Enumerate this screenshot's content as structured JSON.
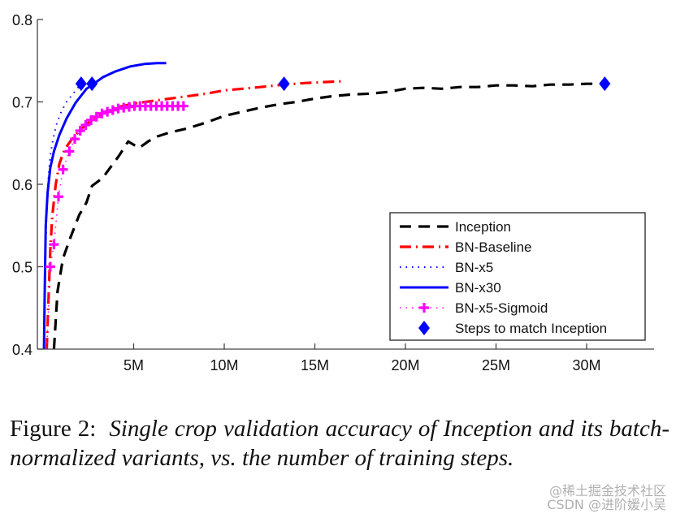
{
  "chart_data": {
    "type": "line",
    "title": "",
    "xlabel": "",
    "ylabel": "",
    "xlim": [
      0,
      32.5
    ],
    "ylim": [
      0.4,
      0.8
    ],
    "xticks": [
      5,
      10,
      15,
      20,
      25,
      30
    ],
    "xtick_labels": [
      "5M",
      "10M",
      "15M",
      "20M",
      "25M",
      "30M"
    ],
    "yticks": [
      0.4,
      0.5,
      0.6,
      0.7,
      0.8
    ],
    "ytick_labels": [
      "0.4",
      "0.5",
      "0.6",
      "0.7",
      "0.8"
    ],
    "grid": false,
    "legend_position": "bottom-right",
    "series": [
      {
        "name": "Inception",
        "color": "#000000",
        "style": "dashed",
        "x": [
          0.6,
          0.8,
          1.1,
          1.5,
          2.0,
          2.4,
          2.7,
          3.0,
          3.3,
          3.7,
          4.2,
          4.7,
          5.0,
          5.3,
          5.8,
          6.3,
          7.0,
          8.0,
          9.0,
          10.0,
          11.0,
          12.0,
          13.0,
          14.0,
          15.0,
          16.0,
          17.0,
          18.0,
          19.0,
          20.0,
          21.0,
          22.0,
          23.0,
          24.0,
          25.0,
          26.0,
          27.0,
          28.0,
          29.0,
          30.0,
          31.0
        ],
        "y": [
          0.4,
          0.47,
          0.51,
          0.535,
          0.563,
          0.578,
          0.598,
          0.603,
          0.608,
          0.62,
          0.635,
          0.652,
          0.648,
          0.644,
          0.652,
          0.658,
          0.663,
          0.668,
          0.675,
          0.683,
          0.688,
          0.693,
          0.697,
          0.7,
          0.704,
          0.707,
          0.709,
          0.71,
          0.712,
          0.716,
          0.717,
          0.716,
          0.718,
          0.718,
          0.72,
          0.72,
          0.719,
          0.721,
          0.721,
          0.722,
          0.722
        ]
      },
      {
        "name": "BN-Baseline",
        "color": "#ff0000",
        "style": "dashdot",
        "x": [
          0.2,
          0.3,
          0.4,
          0.5,
          0.7,
          0.9,
          1.2,
          1.6,
          2.0,
          2.5,
          3.0,
          3.5,
          4.0,
          5.0,
          6.0,
          7.0,
          8.0,
          9.0,
          10.0,
          11.0,
          12.0,
          13.3,
          14.5,
          15.5,
          16.5
        ],
        "y": [
          0.4,
          0.46,
          0.52,
          0.56,
          0.6,
          0.625,
          0.643,
          0.655,
          0.665,
          0.675,
          0.683,
          0.689,
          0.693,
          0.698,
          0.701,
          0.704,
          0.707,
          0.71,
          0.714,
          0.716,
          0.718,
          0.721,
          0.723,
          0.724,
          0.725
        ]
      },
      {
        "name": "BN-x5",
        "color": "#0000ff",
        "style": "dotted",
        "x": [
          0.05,
          0.1,
          0.15,
          0.2,
          0.3,
          0.4,
          0.55,
          0.75,
          1.0,
          1.3,
          1.7,
          2.1
        ],
        "y": [
          0.4,
          0.46,
          0.52,
          0.57,
          0.61,
          0.635,
          0.655,
          0.673,
          0.688,
          0.7,
          0.711,
          0.722
        ]
      },
      {
        "name": "BN-x30",
        "color": "#0000ff",
        "style": "solid",
        "x": [
          0.05,
          0.1,
          0.15,
          0.25,
          0.4,
          0.6,
          0.9,
          1.3,
          1.8,
          2.4,
          2.8,
          3.3,
          4.0,
          4.8,
          5.6,
          6.3,
          6.8
        ],
        "y": [
          0.4,
          0.48,
          0.55,
          0.59,
          0.62,
          0.64,
          0.66,
          0.68,
          0.699,
          0.716,
          0.722,
          0.73,
          0.737,
          0.743,
          0.746,
          0.747,
          0.747
        ]
      },
      {
        "name": "BN-x5-Sigmoid",
        "color": "#ff00ff",
        "style": "dotted-plus",
        "x": [
          0.2,
          0.4,
          0.6,
          0.85,
          1.1,
          1.45,
          1.75,
          2.05,
          2.35,
          2.65,
          2.95,
          3.25,
          3.55,
          3.85,
          4.15,
          4.45,
          4.75,
          5.05,
          5.35,
          5.65,
          5.95,
          6.25,
          6.55,
          6.85,
          7.15,
          7.45,
          7.75
        ],
        "y": [
          0.4,
          0.5,
          0.527,
          0.585,
          0.618,
          0.64,
          0.655,
          0.665,
          0.672,
          0.678,
          0.682,
          0.686,
          0.688,
          0.69,
          0.692,
          0.693,
          0.694,
          0.695,
          0.695,
          0.695,
          0.695,
          0.695,
          0.695,
          0.695,
          0.695,
          0.695,
          0.695
        ]
      }
    ],
    "markers": {
      "name": "Steps to match Inception",
      "color": "#0000ff",
      "shape": "diamond",
      "points": [
        {
          "x": 2.1,
          "y": 0.722,
          "series": "BN-x5"
        },
        {
          "x": 2.7,
          "y": 0.722,
          "series": "BN-x30"
        },
        {
          "x": 13.3,
          "y": 0.722,
          "series": "BN-Baseline"
        },
        {
          "x": 31.0,
          "y": 0.722,
          "series": "Inception"
        }
      ]
    }
  },
  "caption": {
    "lead": "Figure 2:",
    "body": "Single crop validation accuracy of Inception and its batch-normalized variants, vs. the number of training steps."
  },
  "watermark": {
    "line1": "@稀土掘金技术社区",
    "line2": "CSDN @进阶媛小吴"
  }
}
